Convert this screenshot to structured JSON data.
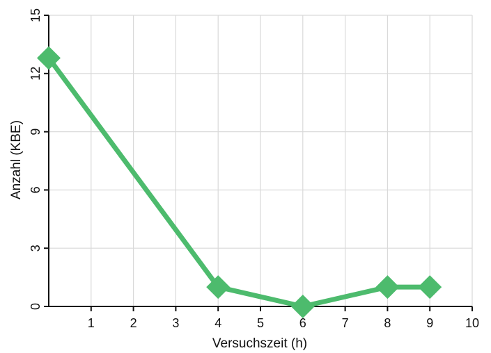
{
  "chart_data": {
    "type": "line",
    "title": "",
    "xlabel": "Versuchszeit (h)",
    "ylabel": "Anzahl (KBE)",
    "xlim": [
      0,
      10
    ],
    "ylim": [
      0,
      15
    ],
    "x_ticks": [
      1,
      2,
      3,
      4,
      5,
      6,
      7,
      8,
      9,
      10
    ],
    "y_ticks": [
      0,
      3,
      6,
      9,
      12,
      15
    ],
    "grid": true,
    "series": [
      {
        "x": [
          0,
          4,
          6,
          8,
          9
        ],
        "y": [
          12.8,
          1.0,
          0.0,
          1.0,
          1.0
        ],
        "color": "#4dbb6d",
        "marker": "diamond"
      }
    ]
  }
}
